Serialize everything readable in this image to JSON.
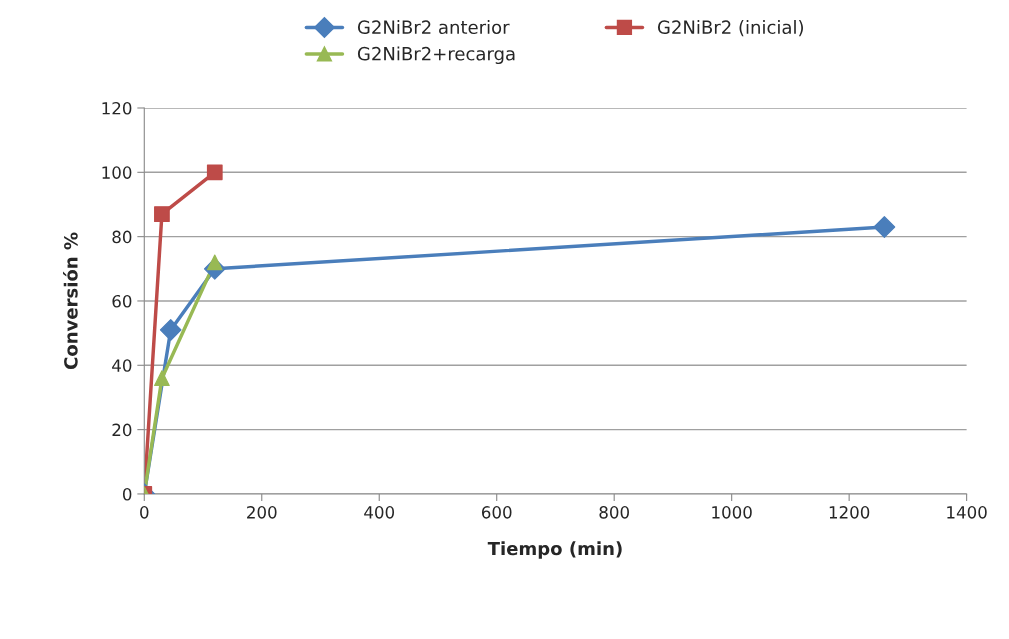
{
  "chart_data": {
    "type": "line",
    "xlabel": "Tiempo (min)",
    "ylabel": "Conversión %",
    "xlim": [
      0,
      1400
    ],
    "xticks": [
      0,
      200,
      400,
      600,
      800,
      1000,
      1200,
      1400
    ],
    "ylim": [
      0,
      120
    ],
    "yticks": [
      0,
      20,
      40,
      60,
      80,
      100,
      120
    ],
    "grid": "y",
    "legend": "top",
    "series": [
      {
        "name": "G2NiBr2 anterior",
        "color": "#4a7ebb",
        "marker": "diamond",
        "x": [
          0,
          45,
          120,
          1260
        ],
        "values": [
          0,
          51,
          70,
          83
        ]
      },
      {
        "name": "G2NiBr2 (inicial)",
        "color": "#be4b48",
        "marker": "square",
        "x": [
          0,
          30,
          120
        ],
        "values": [
          0,
          87,
          100
        ]
      },
      {
        "name": "G2NiBr2+recarga",
        "color": "#98b954",
        "marker": "triangle",
        "x": [
          0,
          30,
          120
        ],
        "values": [
          0,
          36,
          72
        ]
      }
    ]
  }
}
